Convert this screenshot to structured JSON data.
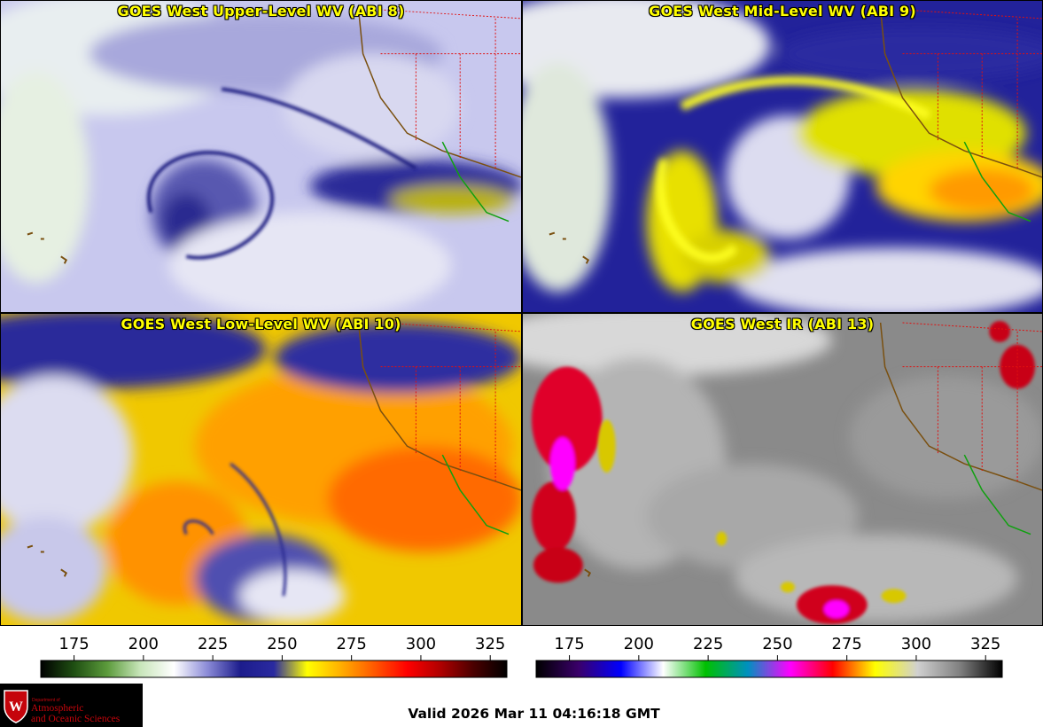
{
  "panels": [
    {
      "title": "GOES West Upper-Level WV (ABI 8)",
      "colormap": "water-vapor"
    },
    {
      "title": "GOES West Mid-Level WV (ABI 9)",
      "colormap": "water-vapor"
    },
    {
      "title": "GOES West Low-Level WV (ABI 10)",
      "colormap": "water-vapor"
    },
    {
      "title": "GOES West IR (ABI 13)",
      "colormap": "infrared"
    }
  ],
  "colorbars": [
    {
      "ticks": [
        "175",
        "200",
        "225",
        "250",
        "275",
        "300",
        "325"
      ],
      "range": [
        163,
        331
      ],
      "colors": [
        "#000000",
        "#1f4f12",
        "#5c9b3c",
        "#c9e6bb",
        "#ffffff",
        "#8c8cd8",
        "#1c1c8c",
        "#2a2aa0",
        "#ffff00",
        "#ffb000",
        "#ff5a00",
        "#ff0000",
        "#b00000",
        "#4a0000",
        "#000000"
      ]
    },
    {
      "ticks": [
        "175",
        "200",
        "225",
        "250",
        "275",
        "300",
        "325"
      ],
      "range": [
        163,
        331
      ],
      "colors": [
        "#000000",
        "#3a006a",
        "#0000ff",
        "#ffffff",
        "#00c000",
        "#0090c0",
        "#ff00ff",
        "#ff0000",
        "#ffff00",
        "#d0d0d0",
        "#808080",
        "#000000"
      ]
    }
  ],
  "logo": {
    "department": "Department of",
    "line1": "Atmospheric",
    "line2": "and Oceanic Sciences"
  },
  "valid_time": "Valid 2026 Mar 11 04:16:18 GMT"
}
